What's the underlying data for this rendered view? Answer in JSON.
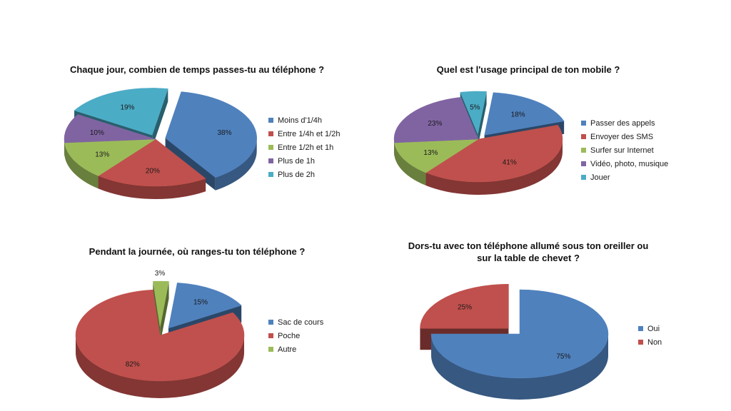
{
  "chart_data": [
    {
      "type": "pie",
      "title": "Chaque jour, combien de temps passes-tu au téléphone ?",
      "categories": [
        "Moins d'1/4h",
        "Entre 1/4h et 1/2h",
        "Entre 1/2h et 1h",
        "Plus de 1h",
        "Plus de 2h"
      ],
      "values": [
        38,
        20,
        13,
        10,
        19
      ],
      "labels": [
        "38%",
        "20%",
        "13%",
        "10%",
        "19%"
      ],
      "colors": [
        "#4F81BD",
        "#C0504D",
        "#9BBB59",
        "#8064A2",
        "#4BACC6"
      ],
      "legend": "right"
    },
    {
      "type": "pie",
      "title": "Quel est l'usage principal de ton mobile ?",
      "categories": [
        "Passer des appels",
        "Envoyer des SMS",
        "Surfer sur Internet",
        "Vidéo, photo, musique",
        "Jouer"
      ],
      "values": [
        18,
        41,
        13,
        23,
        5
      ],
      "labels": [
        "18%",
        "41%",
        "13%",
        "23%",
        "5%"
      ],
      "colors": [
        "#4F81BD",
        "#C0504D",
        "#9BBB59",
        "#8064A2",
        "#4BACC6"
      ],
      "legend": "right"
    },
    {
      "type": "pie",
      "title": "Pendant la journée, où ranges-tu ton téléphone ?",
      "categories": [
        "Sac de cours",
        "Poche",
        "Autre"
      ],
      "values": [
        15,
        82,
        3
      ],
      "labels": [
        "15%",
        "82%",
        "3%"
      ],
      "colors": [
        "#4F81BD",
        "#C0504D",
        "#9BBB59"
      ],
      "legend": "right"
    },
    {
      "type": "pie",
      "title": [
        "Dors-tu avec ton téléphone allumé sous ton oreiller ou",
        "sur la table de chevet ?"
      ],
      "categories": [
        "Oui",
        "Non"
      ],
      "values": [
        75,
        25
      ],
      "labels": [
        "75%",
        "25%"
      ],
      "colors": [
        "#4F81BD",
        "#C0504D"
      ],
      "legend": "right"
    }
  ]
}
